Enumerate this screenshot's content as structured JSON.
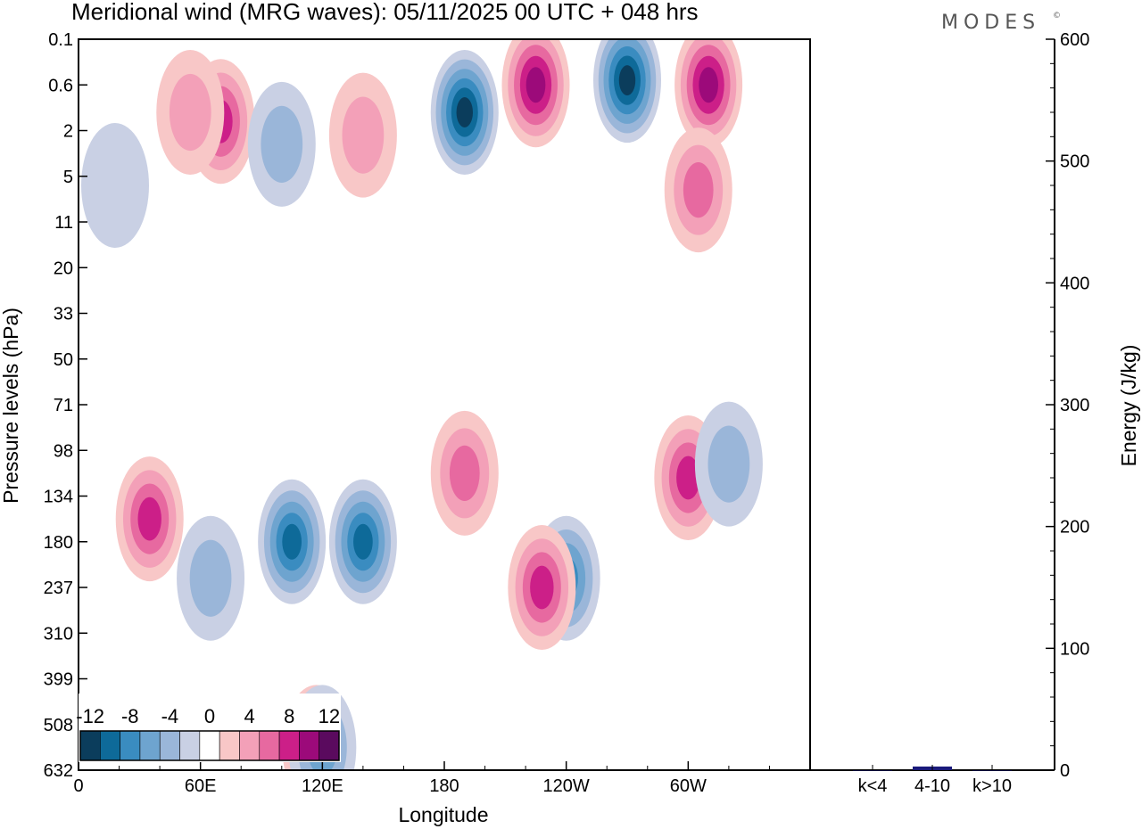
{
  "title": "Meridional wind (MRG waves):  05/11/2025  00 UTC  + 048 hrs",
  "logo": "MODES",
  "logo_mark": "©",
  "chart_data": [
    {
      "type": "heatmap",
      "name": "meridional-wind-contour",
      "xlabel": "Longitude",
      "ylabel": "Pressure levels (hPa)",
      "x_ticks": [
        "0",
        "60E",
        "120E",
        "180",
        "120W",
        "60W"
      ],
      "y_ticks": [
        "0.1",
        "0.6",
        "2",
        "5",
        "11",
        "20",
        "33",
        "50",
        "71",
        "98",
        "134",
        "180",
        "237",
        "310",
        "399",
        "508",
        "632"
      ],
      "colorbar": {
        "levels": [
          -12,
          -10,
          -8,
          -6,
          -4,
          -2,
          2,
          4,
          6,
          8,
          10,
          12
        ],
        "labels": [
          "-12",
          "-8",
          "-4",
          "0",
          "4",
          "8",
          "12"
        ],
        "colors": [
          "#0b3d5c",
          "#0e6a99",
          "#3a8cc0",
          "#6ea4cf",
          "#9ab6d9",
          "#c9d0e4",
          "#ffffff",
          "#f8c7c7",
          "#f3a0b8",
          "#e769a0",
          "#cc1f88",
          "#9c0a7a",
          "#5a0a5e"
        ]
      },
      "features": [
        {
          "lon": 18,
          "lev": 3.2,
          "value": -2
        },
        {
          "lon": 70,
          "lev": 1.8,
          "value": 8
        },
        {
          "lon": 55,
          "lev": 1.6,
          "value": 4
        },
        {
          "lon": 100,
          "lev": 2.3,
          "value": -4
        },
        {
          "lon": 140,
          "lev": 2.1,
          "value": 4
        },
        {
          "lon": 190,
          "lev": 1.6,
          "value": -12
        },
        {
          "lon": 225,
          "lev": 1.0,
          "value": 10
        },
        {
          "lon": 270,
          "lev": 0.9,
          "value": -12
        },
        {
          "lon": 310,
          "lev": 1.0,
          "value": 10
        },
        {
          "lon": 305,
          "lev": 3.3,
          "value": 6
        },
        {
          "lon": 35,
          "lev": 10.5,
          "value": 8
        },
        {
          "lon": 65,
          "lev": 11.8,
          "value": -4
        },
        {
          "lon": 105,
          "lev": 11.0,
          "value": -10
        },
        {
          "lon": 140,
          "lev": 11.0,
          "value": -10
        },
        {
          "lon": 190,
          "lev": 9.5,
          "value": 6
        },
        {
          "lon": 240,
          "lev": 11.8,
          "value": -8
        },
        {
          "lon": 228,
          "lev": 12.0,
          "value": 8
        },
        {
          "lon": 300,
          "lev": 9.6,
          "value": 8
        },
        {
          "lon": 320,
          "lev": 9.3,
          "value": -4
        },
        {
          "lon": 117,
          "lev": 15.5,
          "value": 6
        },
        {
          "lon": 120,
          "lev": 15.5,
          "value": -6
        }
      ]
    },
    {
      "type": "bar",
      "name": "energy-bars",
      "categories": [
        "k<4",
        "4-10",
        "k>10"
      ],
      "values": [
        0,
        3,
        0
      ],
      "ylabel": "Energy (J/kg)",
      "ylim": [
        0,
        600
      ],
      "y_ticks": [
        "0",
        "100",
        "200",
        "300",
        "400",
        "500",
        "600"
      ],
      "bar_color": "#1a1a7a"
    }
  ]
}
